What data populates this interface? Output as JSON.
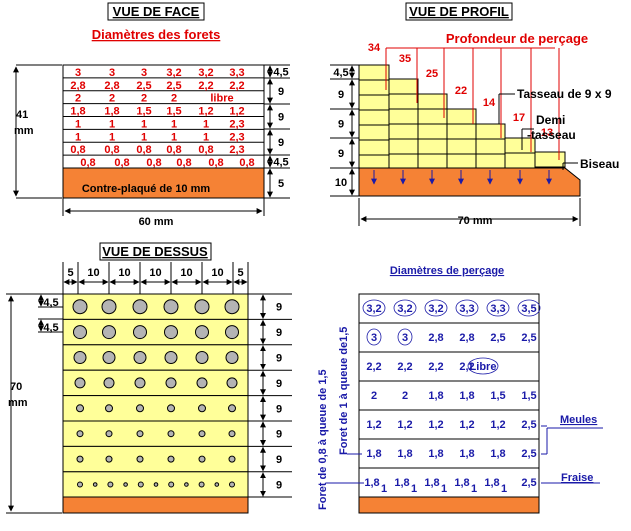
{
  "colors": {
    "wood": "#ffff99",
    "plywood": "#f58235",
    "red": "#e00000",
    "blue": "#1a1aa8",
    "hole": "#b4b4b4",
    "line": "#000000"
  },
  "face": {
    "title": "VUE DE FACE",
    "subtitle": "Diamètres des forets",
    "rows": [
      [
        "3",
        "3",
        "3",
        "3,2",
        "3,2",
        "3,3"
      ],
      [
        "2,8",
        "2,8",
        "2,5",
        "2,5",
        "2,2",
        "2,2"
      ],
      [
        "2",
        "2",
        "2",
        "2",
        "libre",
        ""
      ],
      [
        "1,8",
        "1,8",
        "1,5",
        "1,5",
        "1,2",
        "1,2"
      ],
      [
        "1",
        "1",
        "1",
        "1",
        "1",
        "2,3"
      ],
      [
        "1",
        "1",
        "1",
        "1",
        "1",
        "2,3"
      ],
      [
        "0,8",
        "0,8",
        "0,8",
        "0,8",
        "0,8",
        "2,3"
      ],
      [
        "0,8",
        "0,8",
        "0,8",
        "0,8",
        "0,8",
        "0,8"
      ]
    ],
    "plywood_label": "Contre-plaqué de 10 mm",
    "right_dims": [
      "4,5",
      "9",
      "9",
      "9",
      "4,5",
      "5"
    ],
    "height_value": "41",
    "height_unit": "mm",
    "width_label": "60 mm"
  },
  "profile": {
    "title": "VUE DE PROFIL",
    "depth_label": "Profondeur de perçage",
    "depths": [
      "34",
      "35",
      "25",
      "22",
      "14",
      "17",
      "13"
    ],
    "left_dims": [
      "4,5",
      "9",
      "9",
      "9",
      "10"
    ],
    "tasseau_label": "Tasseau de 9 x 9",
    "demi_line1": "Demi",
    "demi_line2": "-tasseau",
    "biseau_label": "Biseau",
    "width_label": "70 mm"
  },
  "top": {
    "title": "VUE DE DESSUS",
    "top_dims": [
      "5",
      "10",
      "10",
      "10",
      "10",
      "10",
      "5"
    ],
    "left_dims": [
      "4,5",
      "4,5"
    ],
    "right_dims": [
      "9",
      "9",
      "9",
      "9",
      "9",
      "9",
      "9",
      "9"
    ],
    "height_value": "70",
    "height_unit": "mm"
  },
  "drill": {
    "title": "Diamètres de perçage",
    "rows": [
      [
        "3,2",
        "3,2",
        "3,2",
        "3,3",
        "3,3",
        "3,5"
      ],
      [
        "3",
        "3",
        "2,8",
        "2,8",
        "2,5",
        "2,5"
      ],
      [
        "2,2",
        "2,2",
        "2,2",
        "2,2",
        "Libre"
      ],
      [
        "2",
        "2",
        "1,8",
        "1,8",
        "1,5",
        "1,5"
      ],
      [
        "1,2",
        "1,2",
        "1,2",
        "1,2",
        "1,2",
        "2,5"
      ],
      [
        "1,8",
        "1,8",
        "1,8",
        "1,8",
        "1,8",
        "2,5"
      ],
      [
        "1,8",
        "1",
        "1,8",
        "1",
        "1,8",
        "1",
        "1,8",
        "1",
        "1,8",
        "1",
        "2,5"
      ]
    ],
    "vert_label_a": "Foret de 0,8 à queue de 1,5",
    "vert_label_b": "Foret de 1 à queue de1,5",
    "meules_label": "Meules",
    "fraise_label": "Fraise"
  }
}
